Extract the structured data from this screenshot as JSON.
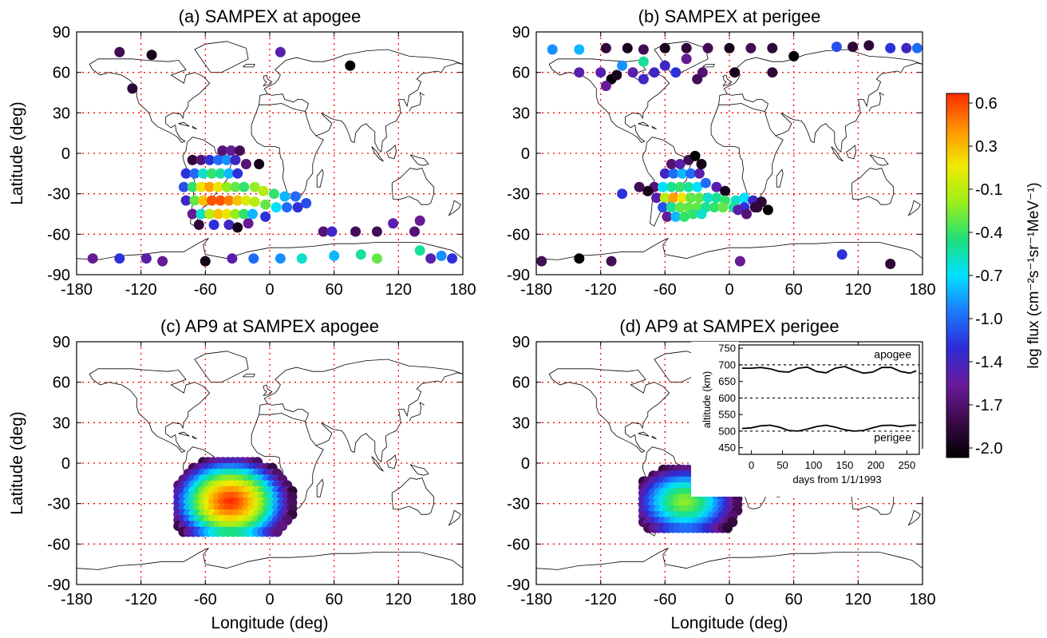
{
  "chart_data": {
    "type": "scatter",
    "color_scale": {
      "label": "log flux (cm⁻²s⁻¹sr⁻¹MeV⁻¹)",
      "min": -2.0,
      "max": 0.6,
      "ticks": [
        "0.6",
        "0.3",
        "-0.1",
        "-0.4",
        "-0.7",
        "-1.0",
        "-1.4",
        "-1.7",
        "-2.0"
      ],
      "colormap": [
        "#000000",
        "#3c0a4a",
        "#6a1b9a",
        "#2e2bd6",
        "#1e78ff",
        "#00e0ff",
        "#1ee07a",
        "#9cef1a",
        "#f0ea00",
        "#ff9400",
        "#ff2a00"
      ]
    },
    "panels": [
      {
        "title": "(a) SAMPEX at apogee",
        "xlabel": "",
        "ylabel": "Latitude (deg)",
        "xlim": [
          -180,
          180
        ],
        "ylim": [
          -90,
          90
        ],
        "xticks": [
          "-180",
          "-120",
          "-60",
          "0",
          "60",
          "120",
          "180"
        ],
        "yticks": [
          "90",
          "60",
          "30",
          "0",
          "-30",
          "-60",
          "-90"
        ],
        "grid": true,
        "points": [
          [
            -78,
            -15,
            -1.2
          ],
          [
            -70,
            -15,
            -1.0
          ],
          [
            -62,
            -15,
            -0.6
          ],
          [
            -54,
            -15,
            -0.4
          ],
          [
            -46,
            -15,
            -0.5
          ],
          [
            -38,
            -15,
            -0.8
          ],
          [
            -30,
            -15,
            -1.2
          ],
          [
            -72,
            -5,
            -1.8
          ],
          [
            -64,
            -5,
            -1.6
          ],
          [
            -56,
            -5,
            -1.2
          ],
          [
            -48,
            -5,
            -1.0
          ],
          [
            -40,
            -5,
            -0.9
          ],
          [
            -32,
            -5,
            -1.3
          ],
          [
            -22,
            -8,
            -1.6
          ],
          [
            -10,
            -8,
            -1.9
          ],
          [
            -44,
            2,
            -1.6
          ],
          [
            -36,
            2,
            -1.5
          ],
          [
            -28,
            2,
            -1.7
          ],
          [
            -80,
            -25,
            -1.1
          ],
          [
            -72,
            -25,
            -0.4
          ],
          [
            -64,
            -25,
            0.1
          ],
          [
            -56,
            -25,
            0.3
          ],
          [
            -48,
            -25,
            0.1
          ],
          [
            -40,
            -25,
            -0.2
          ],
          [
            -32,
            -25,
            -0.3
          ],
          [
            -24,
            -25,
            -0.4
          ],
          [
            -14,
            -25,
            -0.2
          ],
          [
            -6,
            -28,
            -0.1
          ],
          [
            4,
            -30,
            -0.4
          ],
          [
            14,
            -32,
            -0.8
          ],
          [
            24,
            -32,
            -1.0
          ],
          [
            -78,
            -35,
            -1.3
          ],
          [
            -70,
            -35,
            -0.3
          ],
          [
            -62,
            -35,
            0.2
          ],
          [
            -54,
            -35,
            0.5
          ],
          [
            -46,
            -35,
            0.5
          ],
          [
            -38,
            -35,
            0.4
          ],
          [
            -30,
            -35,
            0.2
          ],
          [
            -22,
            -35,
            0.0
          ],
          [
            -14,
            -36,
            -0.1
          ],
          [
            -4,
            -38,
            -0.3
          ],
          [
            6,
            -40,
            -0.7
          ],
          [
            16,
            -40,
            -1.0
          ],
          [
            26,
            -40,
            -1.2
          ],
          [
            34,
            -37,
            -1.1
          ],
          [
            -72,
            -45,
            -1.5
          ],
          [
            -64,
            -45,
            -0.6
          ],
          [
            -56,
            -45,
            -0.1
          ],
          [
            -48,
            -45,
            0.2
          ],
          [
            -40,
            -45,
            0.1
          ],
          [
            -32,
            -45,
            -0.2
          ],
          [
            -24,
            -45,
            -0.4
          ],
          [
            -16,
            -45,
            -0.8
          ],
          [
            -4,
            -47,
            -1.2
          ],
          [
            -66,
            -53,
            -1.8
          ],
          [
            -52,
            -53,
            -1.2
          ],
          [
            -38,
            -53,
            -1.3
          ],
          [
            -30,
            -55,
            -1.9
          ],
          [
            -20,
            -52,
            -1.5
          ],
          [
            -140,
            75,
            -1.7
          ],
          [
            -110,
            73,
            -1.9
          ],
          [
            10,
            75,
            -1.4
          ],
          [
            75,
            65,
            -2.0
          ],
          [
            -128,
            48,
            -1.8
          ],
          [
            -165,
            -78,
            -1.5
          ],
          [
            -140,
            -78,
            -1.2
          ],
          [
            -115,
            -78,
            -1.4
          ],
          [
            -100,
            -80,
            -1.5
          ],
          [
            -60,
            -80,
            -1.9
          ],
          [
            -35,
            -78,
            -1.4
          ],
          [
            -15,
            -78,
            -1.0
          ],
          [
            10,
            -78,
            -0.9
          ],
          [
            30,
            -78,
            -0.6
          ],
          [
            60,
            -76,
            -0.8
          ],
          [
            85,
            -75,
            -0.5
          ],
          [
            100,
            -78,
            -0.3
          ],
          [
            140,
            -72,
            -0.5
          ],
          [
            150,
            -78,
            -1.4
          ],
          [
            160,
            -76,
            -0.9
          ],
          [
            170,
            -78,
            -1.2
          ],
          [
            50,
            -58,
            -1.6
          ],
          [
            58,
            -58,
            -1.3
          ],
          [
            80,
            -58,
            -1.7
          ],
          [
            100,
            -58,
            -1.7
          ],
          [
            115,
            -52,
            -1.4
          ],
          [
            135,
            -58,
            -1.6
          ],
          [
            140,
            -50,
            -1.5
          ]
        ]
      },
      {
        "title": "(b) SAMPEX at perigee",
        "xlabel": "",
        "ylabel": "",
        "xlim": [
          -180,
          180
        ],
        "ylim": [
          -90,
          90
        ],
        "xticks": [
          "-180",
          "-120",
          "-60",
          "0",
          "60",
          "120",
          "180"
        ],
        "yticks": [
          "90",
          "60",
          "30",
          "0",
          "-30",
          "-60",
          "-90"
        ],
        "grid": true,
        "points": [
          [
            -60,
            -15,
            -1.3
          ],
          [
            -52,
            -15,
            -1.0
          ],
          [
            -44,
            -15,
            -0.8
          ],
          [
            -36,
            -15,
            -1.0
          ],
          [
            -28,
            -15,
            -1.4
          ],
          [
            -54,
            -8,
            -1.6
          ],
          [
            -46,
            -8,
            -1.4
          ],
          [
            -38,
            -5,
            -1.7
          ],
          [
            -32,
            -2,
            -2.0
          ],
          [
            -26,
            -8,
            -1.9
          ],
          [
            -70,
            -25,
            -1.6
          ],
          [
            -62,
            -25,
            -0.7
          ],
          [
            -54,
            -25,
            -0.5
          ],
          [
            -46,
            -25,
            -0.4
          ],
          [
            -38,
            -25,
            -0.5
          ],
          [
            -30,
            -25,
            -0.7
          ],
          [
            -22,
            -22,
            -1.0
          ],
          [
            -12,
            -25,
            -1.4
          ],
          [
            -4,
            -28,
            -1.9
          ],
          [
            -76,
            -28,
            -1.9
          ],
          [
            -68,
            -33,
            -1.4
          ],
          [
            -60,
            -33,
            -0.1
          ],
          [
            -52,
            -33,
            0.3
          ],
          [
            -44,
            -33,
            0.1
          ],
          [
            -36,
            -33,
            -0.3
          ],
          [
            -28,
            -33,
            -0.3
          ],
          [
            -20,
            -33,
            -0.6
          ],
          [
            -12,
            -33,
            -0.5
          ],
          [
            -4,
            -35,
            -0.4
          ],
          [
            6,
            -35,
            -0.6
          ],
          [
            14,
            -33,
            -0.7
          ],
          [
            22,
            -35,
            -1.3
          ],
          [
            30,
            -36,
            -1.8
          ],
          [
            -62,
            -40,
            -1.1
          ],
          [
            -54,
            -40,
            -0.5
          ],
          [
            -46,
            -40,
            -0.3
          ],
          [
            -38,
            -40,
            -0.3
          ],
          [
            -30,
            -40,
            -0.3
          ],
          [
            -22,
            -40,
            -0.5
          ],
          [
            -14,
            -40,
            -0.4
          ],
          [
            -6,
            -40,
            -0.3
          ],
          [
            4,
            -40,
            -0.5
          ],
          [
            14,
            -40,
            -1.2
          ],
          [
            24,
            -40,
            -1.8
          ],
          [
            36,
            -42,
            -2.0
          ],
          [
            -58,
            -47,
            -1.5
          ],
          [
            -50,
            -47,
            -0.8
          ],
          [
            -42,
            -47,
            -0.4
          ],
          [
            -34,
            -45,
            -0.4
          ],
          [
            -26,
            -45,
            -0.6
          ],
          [
            8,
            -42,
            -1.4
          ],
          [
            16,
            -45,
            -1.6
          ],
          [
            26,
            -40,
            -1.8
          ],
          [
            -100,
            -30,
            -1.2
          ],
          [
            -84,
            -25,
            -1.7
          ],
          [
            -165,
            77,
            -0.9
          ],
          [
            -140,
            77,
            -0.8
          ],
          [
            -115,
            78,
            -1.8
          ],
          [
            -95,
            78,
            -1.9
          ],
          [
            -80,
            77,
            -1.7
          ],
          [
            -60,
            78,
            -1.9
          ],
          [
            -40,
            78,
            -1.8
          ],
          [
            -20,
            78,
            -1.7
          ],
          [
            0,
            78,
            -1.9
          ],
          [
            20,
            78,
            -1.7
          ],
          [
            40,
            78,
            -1.8
          ],
          [
            60,
            72,
            -2.0
          ],
          [
            100,
            79,
            -1.1
          ],
          [
            115,
            79,
            -1.8
          ],
          [
            130,
            80,
            -1.8
          ],
          [
            150,
            78,
            -1.2
          ],
          [
            165,
            78,
            -1.3
          ],
          [
            175,
            78,
            -1.0
          ],
          [
            -120,
            60,
            -1.4
          ],
          [
            -100,
            65,
            -0.9
          ],
          [
            -80,
            68,
            -0.5
          ],
          [
            -60,
            65,
            -1.3
          ],
          [
            -40,
            70,
            -1.5
          ],
          [
            -25,
            60,
            -1.6
          ],
          [
            5,
            60,
            -1.9
          ],
          [
            40,
            60,
            -1.8
          ],
          [
            -140,
            60,
            -1.4
          ],
          [
            -110,
            55,
            -2.0
          ],
          [
            -80,
            55,
            -1.3
          ],
          [
            -115,
            50,
            -1.5
          ],
          [
            -105,
            58,
            -1.9
          ],
          [
            -90,
            60,
            -1.4
          ],
          [
            -70,
            60,
            -1.3
          ],
          [
            -50,
            60,
            -1.2
          ],
          [
            -30,
            55,
            -1.7
          ],
          [
            -175,
            -80,
            -1.7
          ],
          [
            -140,
            -78,
            -2.0
          ],
          [
            -110,
            -80,
            -1.7
          ],
          [
            10,
            -80,
            -1.5
          ],
          [
            105,
            -75,
            -1.2
          ],
          [
            150,
            -82,
            -1.8
          ]
        ]
      },
      {
        "title": "(c) AP9 at SAMPEX apogee",
        "xlabel": "Longitude (deg)",
        "ylabel": "Latitude (deg)",
        "xlim": [
          -180,
          180
        ],
        "ylim": [
          -90,
          90
        ],
        "xticks": [
          "-180",
          "-120",
          "-60",
          "0",
          "60",
          "120",
          "180"
        ],
        "yticks": [
          "90",
          "60",
          "30",
          "0",
          "-30",
          "-60",
          "-90"
        ],
        "grid": true,
        "model": {
          "center": [
            -35,
            -30
          ],
          "peak": 0.6,
          "radius_x": 58,
          "radius_y": 35,
          "edge": -1.8,
          "extent": [
            -85,
            35,
            -55,
            5
          ]
        }
      },
      {
        "title": "(d) AP9 at SAMPEX perigee",
        "xlabel": "Longitude (deg)",
        "ylabel": "",
        "xlim": [
          -180,
          180
        ],
        "ylim": [
          -90,
          90
        ],
        "xticks": [
          "-180",
          "-120",
          "-60",
          "0",
          "60",
          "120",
          "180"
        ],
        "yticks": [
          "90",
          "60",
          "30",
          "0",
          "-30",
          "-60",
          "-90"
        ],
        "grid": true,
        "model": {
          "center": [
            -40,
            -30
          ],
          "peak": -0.2,
          "radius_x": 50,
          "radius_y": 28,
          "edge": -1.8,
          "extent": [
            -80,
            25,
            -50,
            -5
          ]
        }
      }
    ],
    "inset": {
      "type": "line",
      "xlabel": "days from 1/1/1993",
      "ylabel": "altitude (km)",
      "xlim": [
        -20,
        270
      ],
      "ylim": [
        430,
        760
      ],
      "xticks": [
        "0",
        "50",
        "100",
        "150",
        "200",
        "250"
      ],
      "yticks": [
        "750",
        "700",
        "650",
        "600",
        "550",
        "500",
        "450"
      ],
      "annotations": [
        "apogee",
        "perigee"
      ],
      "reference_lines": [
        700,
        600,
        500
      ],
      "series": [
        {
          "x": [
            -15,
            0,
            15,
            30,
            45,
            60,
            75,
            90,
            105,
            120,
            135,
            150,
            165,
            180,
            195,
            210,
            225,
            240,
            255,
            265
          ],
          "y": [
            690,
            690,
            692,
            688,
            680,
            678,
            690,
            693,
            680,
            676,
            690,
            695,
            684,
            675,
            678,
            692,
            692,
            680,
            675,
            682
          ]
        },
        {
          "x": [
            -15,
            0,
            15,
            30,
            45,
            60,
            75,
            90,
            105,
            120,
            135,
            150,
            165,
            180,
            195,
            210,
            225,
            240,
            255,
            265
          ],
          "y": [
            508,
            510,
            516,
            518,
            512,
            502,
            500,
            506,
            514,
            518,
            512,
            504,
            500,
            502,
            510,
            517,
            518,
            514,
            518,
            518
          ]
        }
      ]
    }
  }
}
